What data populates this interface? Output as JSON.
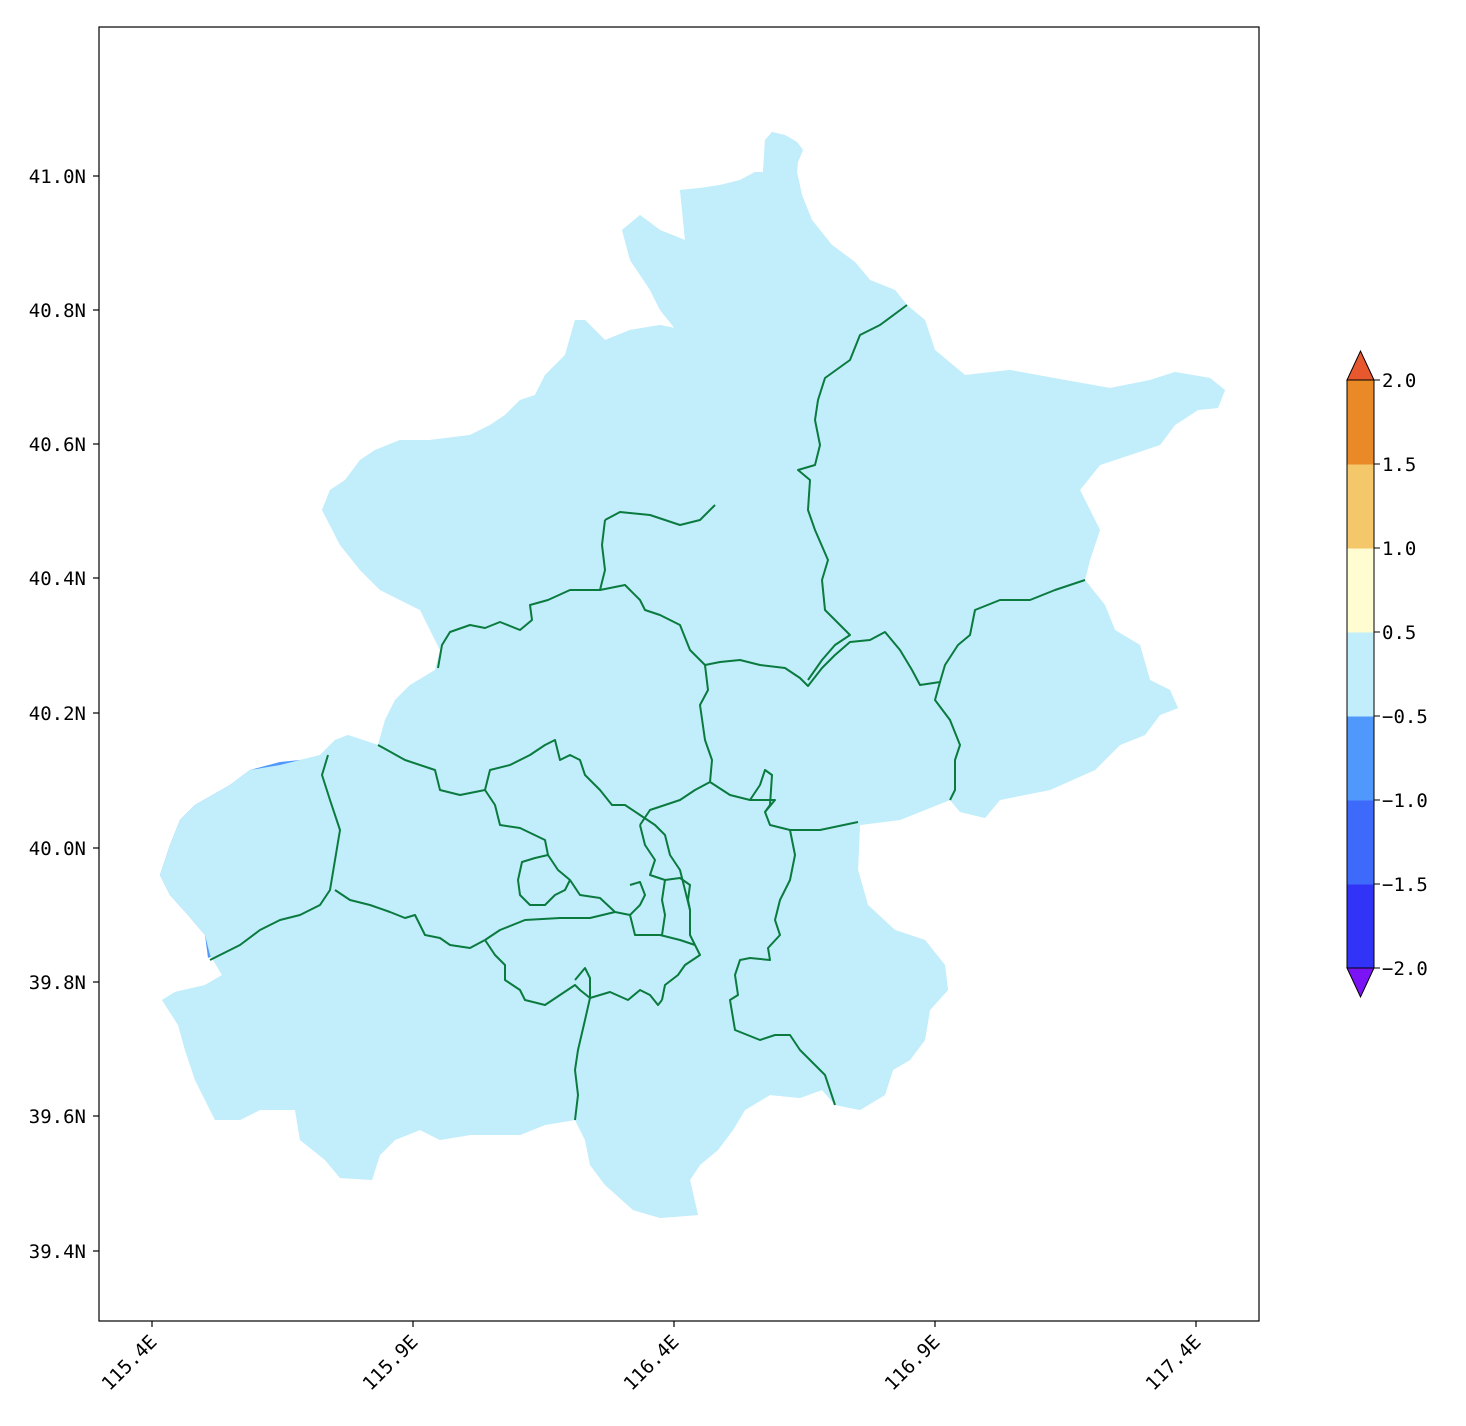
{
  "map": {
    "region_fill": "#c2eefc",
    "boundary_color": "#0a7a3e",
    "anomaly_fill": "#5098fb",
    "lat_ticks": [
      "41.0N",
      "40.8N",
      "40.6N",
      "40.4N",
      "40.2N",
      "40.0N",
      "39.8N",
      "39.6N",
      "39.4N"
    ],
    "lon_ticks": [
      "115.4E",
      "115.9E",
      "116.4E",
      "116.9E",
      "117.4E"
    ]
  },
  "colorbar": {
    "tick_labels": [
      "2.0",
      "1.5",
      "1.0",
      "0.5",
      "−0.5",
      "−1.0",
      "−1.5",
      "−2.0"
    ],
    "segments": [
      {
        "color": "#3134f7"
      },
      {
        "color": "#3e6afb"
      },
      {
        "color": "#5098fb"
      },
      {
        "color": "#c2eefc"
      },
      {
        "color": "#fefcd0"
      },
      {
        "color": "#f4c86a"
      },
      {
        "color": "#e98a27"
      }
    ],
    "extend_low_color": "#7a14f5",
    "extend_high_color": "#e8582e"
  }
}
